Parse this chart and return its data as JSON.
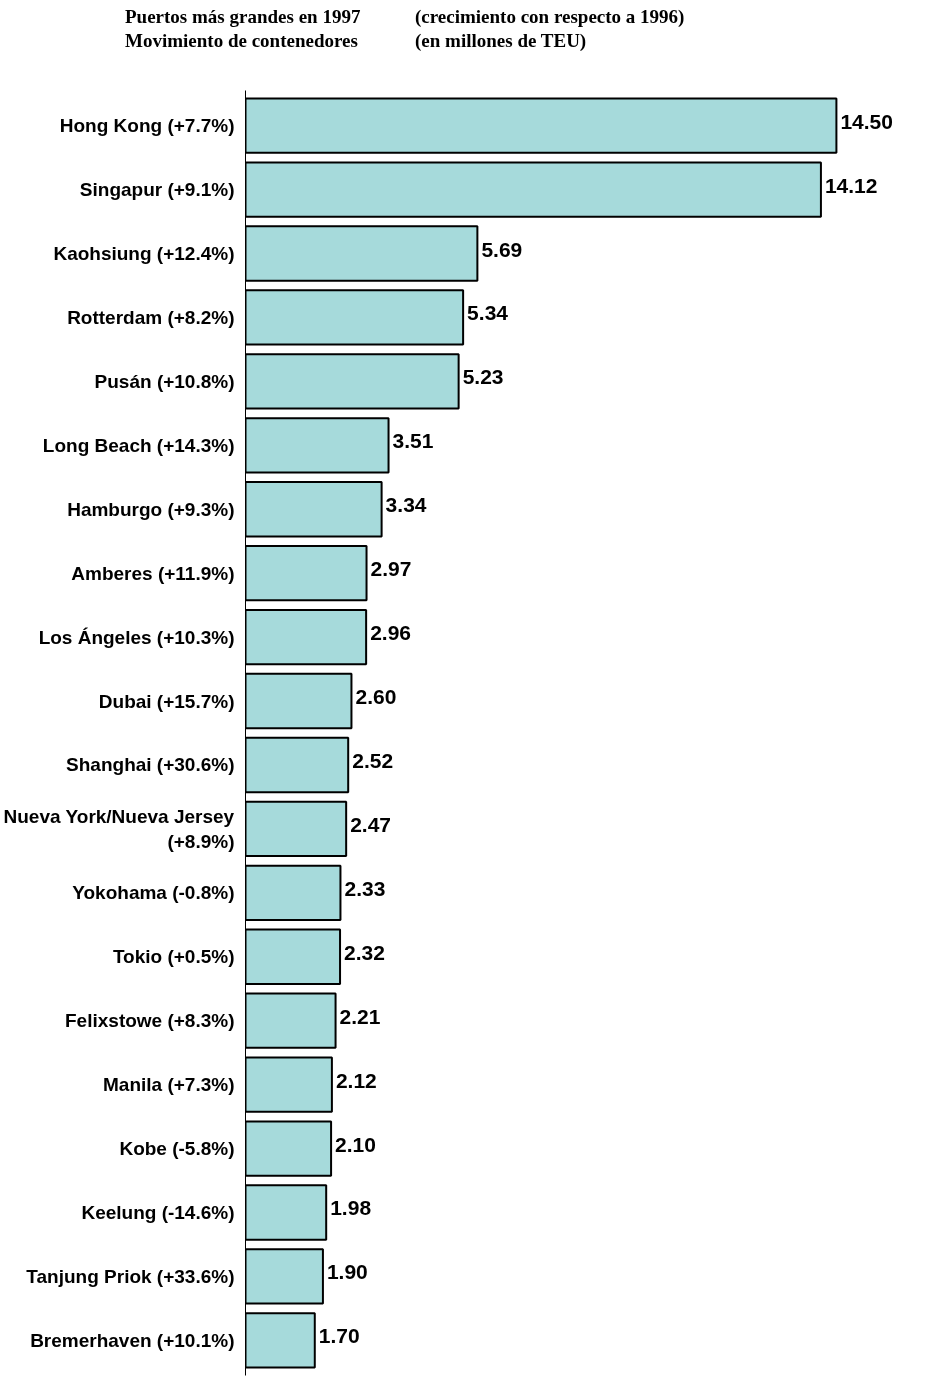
{
  "chart_data": {
    "type": "bar",
    "orientation": "horizontal",
    "title": "Puertos más grandes en 1997\nMovimiento de contenedores",
    "subtitle": "(crecimiento con respecto a 1996)\n(en millones de TEU)",
    "categories": [
      "Hong Kong (+7.7%)",
      "Singapur (+9.1%)",
      "Kaohsiung (+12.4%)",
      "Rotterdam (+8.2%)",
      "Pusán (+10.8%)",
      "Long Beach (+14.3%)",
      "Hamburgo (+9.3%)",
      "Amberes (+11.9%)",
      "Los Ángeles (+10.3%)",
      "Dubai (+15.7%)",
      "Shanghai (+30.6%)",
      "Nueva York/Nueva Jersey\n(+8.9%)",
      "Yokohama (-0.8%)",
      "Tokio (+0.5%)",
      "Felixstowe (+8.3%)",
      "Manila (+7.3%)",
      "Kobe (-5.8%)",
      "Keelung (-14.6%)",
      "Tanjung Priok (+33.6%)",
      "Bremerhaven (+10.1%)"
    ],
    "values": [
      14.5,
      14.12,
      5.69,
      5.34,
      5.23,
      3.51,
      3.34,
      2.97,
      2.96,
      2.6,
      2.52,
      2.47,
      2.33,
      2.32,
      2.21,
      2.12,
      2.1,
      1.98,
      1.9,
      1.7
    ],
    "color": "#a6dadb",
    "value_labels": [
      "14.50",
      "14.12",
      "5.69",
      "5.34",
      "5.23",
      "3.51",
      "3.34",
      "2.97",
      "2.96",
      "2.60",
      "2.52",
      "2.47",
      "2.33",
      "2.32",
      "2.21",
      "2.12",
      "2.10",
      "1.98",
      "1.90",
      "1.70"
    ],
    "grid": false
  }
}
